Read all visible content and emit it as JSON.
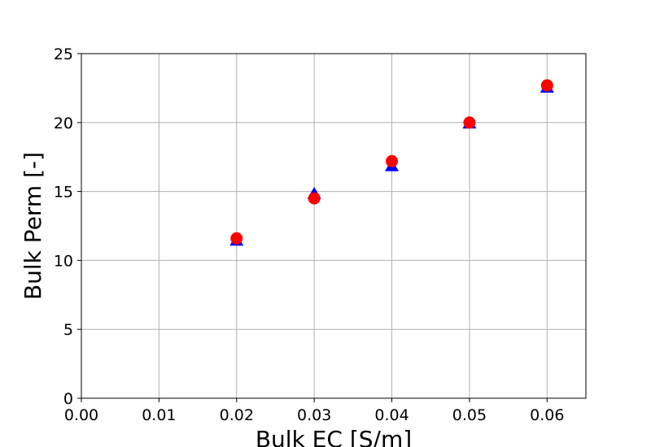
{
  "chart_data": {
    "type": "scatter",
    "title": "",
    "xlabel": "Bulk EC [S/m]",
    "ylabel": "Bulk Perm [-]",
    "xlim": [
      0.0,
      0.065
    ],
    "ylim": [
      0,
      25
    ],
    "grid": true,
    "legend": "none",
    "x_ticks": [
      "0.00",
      "0.01",
      "0.02",
      "0.03",
      "0.04",
      "0.05",
      "0.06"
    ],
    "y_ticks": [
      "0",
      "5",
      "10",
      "15",
      "20",
      "25"
    ],
    "series": [
      {
        "marker": "triangle",
        "color": "#0000ff",
        "x": [
          0.02,
          0.03,
          0.04,
          0.05,
          0.06
        ],
        "y": [
          11.4,
          14.8,
          16.8,
          19.9,
          22.5
        ]
      },
      {
        "marker": "circle",
        "color": "#ff0000",
        "x": [
          0.02,
          0.03,
          0.04,
          0.05,
          0.06
        ],
        "y": [
          11.6,
          14.5,
          17.2,
          20.0,
          22.7
        ]
      }
    ]
  }
}
